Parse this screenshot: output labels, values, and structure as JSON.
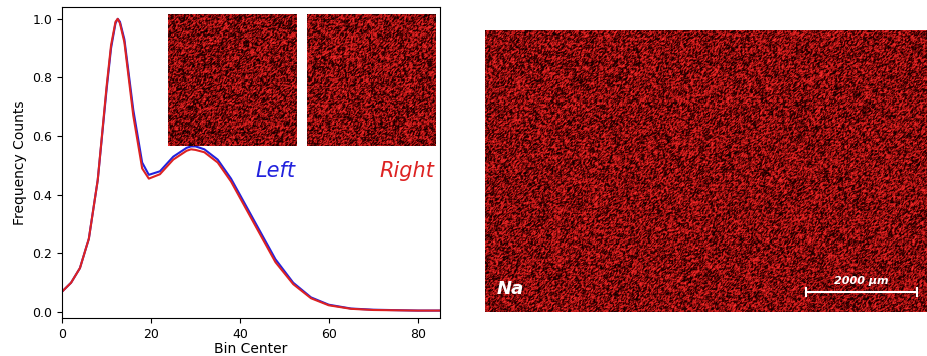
{
  "chart_data": {
    "type": "line",
    "x_label": "Bin Center",
    "y_label": "Frequency Counts",
    "xlim": [
      0,
      85
    ],
    "xticks": [
      0,
      20,
      40,
      60,
      80
    ],
    "ylim": [
      -0.02,
      1.04
    ],
    "yticks": [
      {
        "value": 0,
        "label": "0.0"
      },
      0.2,
      0.4,
      0.6,
      0.8,
      {
        "value": 1,
        "label": "1.0"
      }
    ],
    "x": [
      0,
      2,
      4,
      6,
      8,
      10,
      11,
      12,
      12.5,
      13,
      14,
      16,
      18,
      19.5,
      22,
      25,
      28,
      29,
      30,
      32,
      35,
      38,
      40,
      44,
      48,
      52,
      56,
      60,
      65,
      70,
      80,
      85
    ],
    "series": [
      {
        "name": "Left",
        "color": "#2222dd",
        "values": [
          0.07,
          0.1,
          0.15,
          0.25,
          0.45,
          0.76,
          0.9,
          0.985,
          1.0,
          0.99,
          0.93,
          0.69,
          0.51,
          0.468,
          0.48,
          0.53,
          0.56,
          0.565,
          0.565,
          0.555,
          0.52,
          0.455,
          0.4,
          0.29,
          0.18,
          0.1,
          0.05,
          0.025,
          0.012,
          0.008,
          0.005,
          0.005
        ]
      },
      {
        "name": "Right",
        "color": "#dd2222",
        "values": [
          0.07,
          0.1,
          0.15,
          0.25,
          0.45,
          0.77,
          0.91,
          0.99,
          1.0,
          0.985,
          0.92,
          0.67,
          0.49,
          0.455,
          0.47,
          0.52,
          0.55,
          0.555,
          0.553,
          0.545,
          0.51,
          0.445,
          0.39,
          0.28,
          0.17,
          0.095,
          0.047,
          0.023,
          0.011,
          0.007,
          0.005,
          0.005
        ]
      }
    ],
    "maps": {
      "element": "Na",
      "scale_bar": "2000 μm"
    }
  }
}
